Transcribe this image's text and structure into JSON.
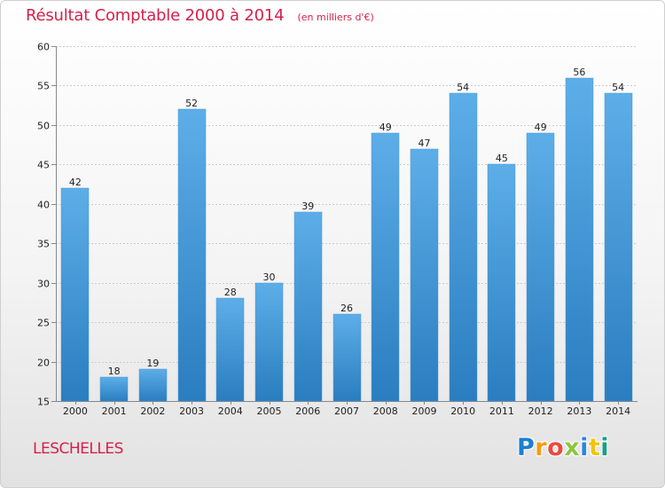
{
  "header": {
    "title": "Résultat Comptable 2000 à 2014",
    "unit": "(en milliers d'€)"
  },
  "footer": {
    "commune": "LESCHELLES",
    "logo_text": "Proxiti"
  },
  "colors": {
    "title": "#d6204a",
    "bar_top": "#5daee8",
    "bar_bottom": "#2a7dbf",
    "grid": "#cccccc"
  },
  "chart_data": {
    "type": "bar",
    "title": "Résultat Comptable 2000 à 2014",
    "subtitle": "(en milliers d'€)",
    "xlabel": "",
    "ylabel": "",
    "categories": [
      "2000",
      "2001",
      "2002",
      "2003",
      "2004",
      "2005",
      "2006",
      "2007",
      "2008",
      "2009",
      "2010",
      "2011",
      "2012",
      "2013",
      "2014"
    ],
    "values": [
      42,
      18,
      19,
      52,
      28,
      30,
      39,
      26,
      49,
      47,
      54,
      45,
      49,
      56,
      54
    ],
    "ylim": [
      15,
      60
    ],
    "yticks": [
      15,
      20,
      25,
      30,
      35,
      40,
      45,
      50,
      55,
      60
    ],
    "grid": true,
    "legend": "none"
  }
}
